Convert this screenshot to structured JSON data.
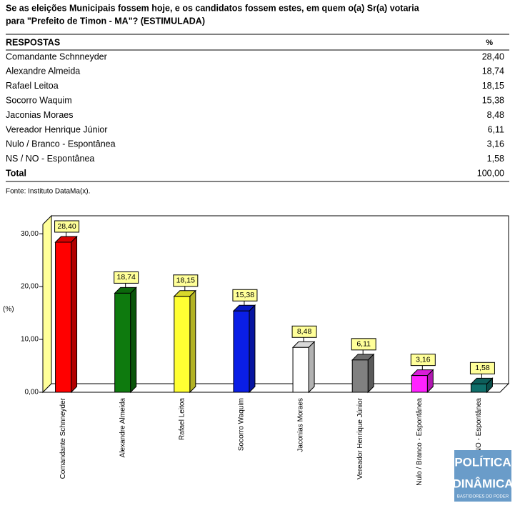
{
  "title": [
    "Se as eleições Municipais fossem hoje, e os candidatos fossem estes, em quem o(a) Sr(a) votaria",
    "para \"Prefeito de Timon - MA\"?  (ESTIMULADA)"
  ],
  "table": {
    "header": [
      "RESPOSTAS",
      "%"
    ],
    "rows": [
      [
        "Comandante Schnneyder",
        "28,40"
      ],
      [
        "Alexandre Almeida",
        "18,74"
      ],
      [
        "Rafael Leitoa",
        "18,15"
      ],
      [
        "Socorro Waquim",
        "15,38"
      ],
      [
        "Jaconias Moraes",
        "8,48"
      ],
      [
        "Vereador Henrique Júnior",
        "6,11"
      ],
      [
        "Nulo / Branco - Espontânea",
        "3,16"
      ],
      [
        "NS / NO - Espontânea",
        "1,58"
      ]
    ],
    "total": [
      "Total",
      "100,00"
    ]
  },
  "source": "Fonte: Instituto DataMa(x).",
  "chart_data": {
    "type": "bar3d",
    "y_label": "(%)",
    "categories": [
      "Comandante Schnneyder",
      "Alexandre Almeida",
      "Rafael Leitoa",
      "Socorro Waquim",
      "Jaconias Moraes",
      "Vereador Henrique Júnior",
      "Nulo / Branco - Espontânea",
      "NS / NO - Espontânea"
    ],
    "values": [
      28.4,
      18.74,
      18.15,
      15.38,
      8.48,
      6.11,
      3.16,
      1.58
    ],
    "value_labels": [
      "28,40",
      "18,74",
      "18,15",
      "15,38",
      "8,48",
      "6,11",
      "3,16",
      "1,58"
    ],
    "colors": [
      "#ff0000",
      "#0e7a0e",
      "#ffff33",
      "#0a1ee6",
      "#ffffff",
      "#808080",
      "#ff22ff",
      "#0f6f6a"
    ],
    "ylim": [
      0,
      33.4
    ],
    "yticks": [
      {
        "value": 0,
        "label": "0,00"
      },
      {
        "value": 10,
        "label": "10,00"
      },
      {
        "value": 20,
        "label": "20,00"
      },
      {
        "value": 30,
        "label": "30,00"
      }
    ]
  },
  "watermark": {
    "line1": "POLÍTICA",
    "line2": "DINÂMICA",
    "line3": "BASTIDORES DO PODER"
  }
}
